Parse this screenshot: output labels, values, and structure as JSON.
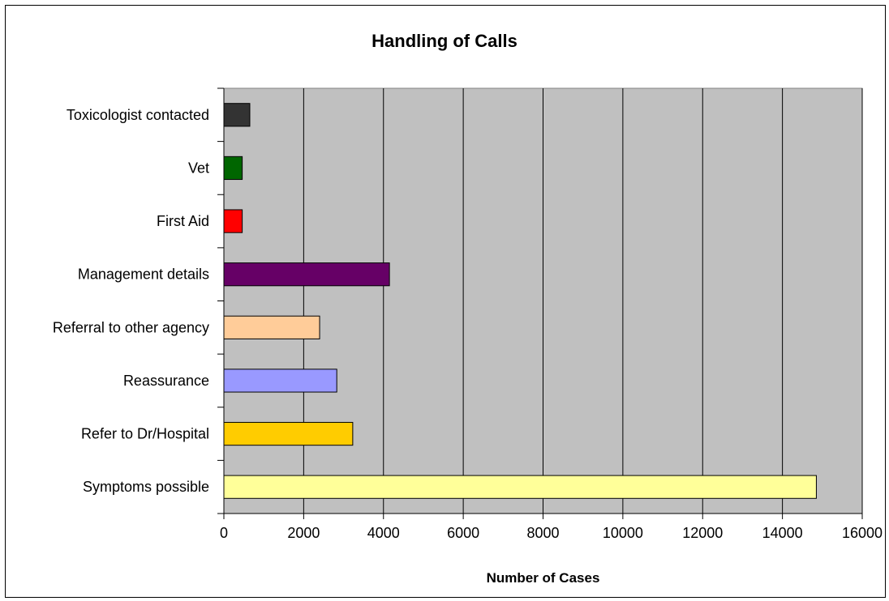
{
  "chart_data": {
    "type": "bar",
    "orientation": "horizontal",
    "title": "Handling of Calls",
    "xlabel": "Number of Cases",
    "ylabel": "",
    "xlim": [
      0,
      16000
    ],
    "x_ticks": [
      0,
      2000,
      4000,
      6000,
      8000,
      10000,
      12000,
      14000,
      16000
    ],
    "grid": "vertical",
    "plot_background": "#c0c0c0",
    "categories": [
      "Symptoms possible",
      "Refer to Dr/Hospital",
      "Reassurance",
      "Referral to other agency",
      "Management details",
      "First Aid",
      "Vet",
      "Toxicologist contacted"
    ],
    "values": [
      14850,
      3230,
      2830,
      2400,
      4150,
      460,
      460,
      650
    ],
    "colors": [
      "#ffff99",
      "#ffcc00",
      "#9999ff",
      "#ffcc99",
      "#660066",
      "#ff0000",
      "#006600",
      "#333333"
    ]
  }
}
